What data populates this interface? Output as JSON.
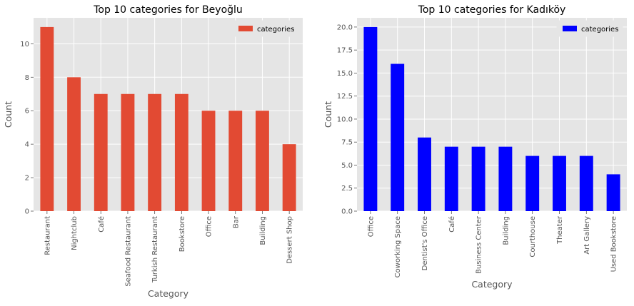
{
  "chart_data": [
    {
      "type": "bar",
      "title": "Top 10 categories for Beyoğlu",
      "xlabel": "Category",
      "ylabel": "Count",
      "ylim": [
        0,
        11.55
      ],
      "yticks": [
        0,
        2,
        4,
        6,
        8,
        10
      ],
      "ytick_labels": [
        "0",
        "2",
        "4",
        "6",
        "8",
        "10"
      ],
      "grid": true,
      "legend_position": "top-right",
      "categories": [
        "Restaurant",
        "Nightclub",
        "Café",
        "Seafood Restaurant",
        "Turkish Restaurant",
        "Bookstore",
        "Office",
        "Bar",
        "Building",
        "Dessert Shop"
      ],
      "series": [
        {
          "name": "categories",
          "color": "#E24A33",
          "values": [
            11,
            8,
            7,
            7,
            7,
            7,
            6,
            6,
            6,
            4
          ]
        }
      ]
    },
    {
      "type": "bar",
      "title": "Top 10 categories for Kadıköy",
      "xlabel": "Category",
      "ylabel": "Count",
      "ylim": [
        0,
        21
      ],
      "yticks": [
        0,
        2.5,
        5,
        7.5,
        10,
        12.5,
        15,
        17.5,
        20
      ],
      "ytick_labels": [
        "0.0",
        "2.5",
        "5.0",
        "7.5",
        "10.0",
        "12.5",
        "15.0",
        "17.5",
        "20.0"
      ],
      "grid": true,
      "legend_position": "top-right",
      "categories": [
        "Office",
        "Coworking Space",
        "Dentist's Office",
        "Café",
        "Business Center",
        "Building",
        "Courthouse",
        "Theater",
        "Art Gallery",
        "Used Bookstore"
      ],
      "series": [
        {
          "name": "categories",
          "color": "#0000FF",
          "values": [
            20,
            16,
            8,
            7,
            7,
            7,
            6,
            6,
            6,
            4
          ]
        }
      ]
    }
  ]
}
